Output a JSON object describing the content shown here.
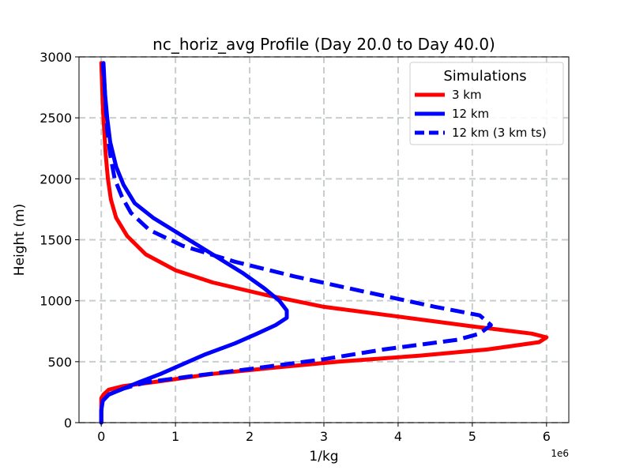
{
  "chart_data": {
    "type": "line",
    "title": "nc_horiz_avg Profile (Day 20.0 to Day 40.0)",
    "xlabel": "1/kg",
    "ylabel": "Height (m)",
    "x_offset_label": "1e6",
    "xlim": [
      -0.3,
      6.3
    ],
    "ylim": [
      0,
      3000
    ],
    "xticks": [
      0,
      1,
      2,
      3,
      4,
      5,
      6
    ],
    "xtick_labels": [
      "0",
      "1",
      "2",
      "3",
      "4",
      "5",
      "6"
    ],
    "yticks": [
      0,
      500,
      1000,
      1500,
      2000,
      2500,
      3000
    ],
    "ytick_labels": [
      "0",
      "500",
      "1000",
      "1500",
      "2000",
      "2500",
      "3000"
    ],
    "grid": true,
    "legend": {
      "title": "Simulations",
      "position": "top-right"
    },
    "series": [
      {
        "name": "3 km",
        "color": "#ff0000",
        "dash": "solid",
        "points": [
          [
            0.0,
            0
          ],
          [
            0.0,
            100
          ],
          [
            0.0,
            200
          ],
          [
            0.03,
            230
          ],
          [
            0.1,
            270
          ],
          [
            0.3,
            300
          ],
          [
            0.8,
            340
          ],
          [
            1.5,
            400
          ],
          [
            2.3,
            450
          ],
          [
            3.2,
            500
          ],
          [
            4.3,
            550
          ],
          [
            5.2,
            600
          ],
          [
            5.9,
            660
          ],
          [
            6.0,
            700
          ],
          [
            5.8,
            730
          ],
          [
            5.0,
            790
          ],
          [
            4.0,
            870
          ],
          [
            3.0,
            950
          ],
          [
            2.2,
            1050
          ],
          [
            1.5,
            1150
          ],
          [
            1.0,
            1250
          ],
          [
            0.6,
            1380
          ],
          [
            0.35,
            1530
          ],
          [
            0.2,
            1680
          ],
          [
            0.13,
            1830
          ],
          [
            0.09,
            2000
          ],
          [
            0.06,
            2200
          ],
          [
            0.04,
            2400
          ],
          [
            0.02,
            2600
          ],
          [
            0.01,
            2800
          ],
          [
            0.0,
            2950
          ]
        ]
      },
      {
        "name": "12 km",
        "color": "#0000ff",
        "dash": "solid",
        "points": [
          [
            0.0,
            0
          ],
          [
            0.0,
            100
          ],
          [
            0.02,
            180
          ],
          [
            0.1,
            230
          ],
          [
            0.3,
            280
          ],
          [
            0.5,
            330
          ],
          [
            0.8,
            400
          ],
          [
            1.1,
            480
          ],
          [
            1.4,
            560
          ],
          [
            1.8,
            650
          ],
          [
            2.1,
            730
          ],
          [
            2.35,
            800
          ],
          [
            2.5,
            860
          ],
          [
            2.5,
            920
          ],
          [
            2.4,
            1000
          ],
          [
            2.2,
            1100
          ],
          [
            1.9,
            1230
          ],
          [
            1.5,
            1380
          ],
          [
            1.1,
            1530
          ],
          [
            0.7,
            1680
          ],
          [
            0.45,
            1800
          ],
          [
            0.3,
            1950
          ],
          [
            0.2,
            2100
          ],
          [
            0.12,
            2300
          ],
          [
            0.08,
            2500
          ],
          [
            0.05,
            2700
          ],
          [
            0.03,
            2950
          ]
        ]
      },
      {
        "name": "12 km (3 km ts)",
        "color": "#0000ff",
        "dash": "dashed",
        "points": [
          [
            0.0,
            0
          ],
          [
            0.0,
            100
          ],
          [
            0.02,
            180
          ],
          [
            0.1,
            230
          ],
          [
            0.3,
            280
          ],
          [
            0.6,
            330
          ],
          [
            1.2,
            380
          ],
          [
            2.0,
            440
          ],
          [
            3.0,
            520
          ],
          [
            3.8,
            600
          ],
          [
            4.8,
            680
          ],
          [
            5.1,
            730
          ],
          [
            5.25,
            800
          ],
          [
            5.1,
            880
          ],
          [
            4.5,
            950
          ],
          [
            3.5,
            1080
          ],
          [
            2.6,
            1200
          ],
          [
            1.8,
            1320
          ],
          [
            1.1,
            1450
          ],
          [
            0.65,
            1580
          ],
          [
            0.4,
            1720
          ],
          [
            0.28,
            1850
          ],
          [
            0.18,
            2000
          ],
          [
            0.12,
            2200
          ],
          [
            0.08,
            2400
          ],
          [
            0.06,
            2600
          ],
          [
            0.04,
            2800
          ],
          [
            0.02,
            2950
          ]
        ]
      }
    ]
  }
}
